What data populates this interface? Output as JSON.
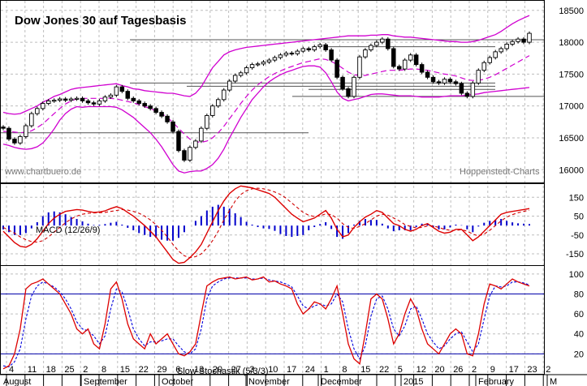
{
  "chart_data": [
    {
      "type": "candlestick",
      "title": "Dow Jones 30 auf Tagesbasis",
      "source_left": "www.chartbuero.de",
      "source_right": "Hoppenstedt-Charts",
      "ylim": [
        15800,
        18650
      ],
      "yticks": [
        16000,
        16500,
        17000,
        17500,
        18000,
        18500
      ],
      "series": [
        {
          "name": "Close",
          "values": [
            16650,
            16480,
            16420,
            16520,
            16690,
            16880,
            16960,
            17040,
            17080,
            17090,
            17110,
            17090,
            17110,
            17120,
            17080,
            17050,
            17030,
            17080,
            17140,
            17170,
            17300,
            17230,
            17120,
            17080,
            17040,
            17000,
            16960,
            16900,
            16840,
            16750,
            16600,
            16300,
            16150,
            16350,
            16450,
            16650,
            16850,
            17000,
            17100,
            17250,
            17390,
            17480,
            17520,
            17600,
            17650,
            17660,
            17690,
            17720,
            17760,
            17800,
            17830,
            17820,
            17860,
            17900,
            17880,
            17930,
            17960,
            17880,
            17720,
            17450,
            17270,
            17150,
            17450,
            17770,
            17880,
            17950,
            18000,
            18050,
            17900,
            17620,
            17580,
            17720,
            17800,
            17650,
            17530,
            17450,
            17380,
            17360,
            17420,
            17380,
            17350,
            17200,
            17150,
            17360,
            17560,
            17680,
            17760,
            17850,
            17900,
            17970,
            18010,
            18050,
            18000,
            18140
          ]
        },
        {
          "name": "Bollinger upper",
          "values": [
            16900,
            16880,
            16870,
            16880,
            16920,
            16960,
            17000,
            17060,
            17100,
            17150,
            17180,
            17220,
            17260,
            17280,
            17290,
            17300,
            17310,
            17320,
            17330,
            17340,
            17350,
            17320,
            17300,
            17270,
            17260,
            17240,
            17230,
            17220,
            17210,
            17200,
            17200,
            17180,
            17160,
            17150,
            17200,
            17300,
            17450,
            17600,
            17700,
            17800,
            17850,
            17880,
            17900,
            17920,
            17930,
            17940,
            17950,
            17960,
            17970,
            17980,
            17990,
            18000,
            18010,
            18020,
            18030,
            18040,
            18050,
            18060,
            18070,
            18080,
            18090,
            18100,
            18100,
            18100,
            18100,
            18110,
            18110,
            18120,
            18120,
            18100,
            18090,
            18080,
            18080,
            18070,
            18060,
            18050,
            18040,
            18030,
            18020,
            18010,
            18010,
            18000,
            18000,
            18010,
            18030,
            18060,
            18090,
            18120,
            18170,
            18230,
            18290,
            18340,
            18380,
            18420
          ]
        },
        {
          "name": "Bollinger lower",
          "values": [
            16400,
            16380,
            16350,
            16330,
            16320,
            16330,
            16360,
            16420,
            16520,
            16640,
            16780,
            16880,
            16950,
            16990,
            16980,
            16990,
            16990,
            16990,
            16990,
            16990,
            16980,
            16940,
            16880,
            16820,
            16740,
            16660,
            16580,
            16480,
            16360,
            16220,
            16080,
            15980,
            15950,
            15970,
            15980,
            15980,
            16020,
            16080,
            16180,
            16320,
            16500,
            16660,
            16820,
            16960,
            17100,
            17200,
            17300,
            17380,
            17440,
            17490,
            17530,
            17560,
            17590,
            17620,
            17630,
            17630,
            17610,
            17520,
            17380,
            17220,
            17120,
            17080,
            17100,
            17120,
            17150,
            17180,
            17190,
            17190,
            17180,
            17170,
            17160,
            17160,
            17160,
            17150,
            17140,
            17140,
            17140,
            17140,
            17150,
            17160,
            17160,
            17160,
            17170,
            17180,
            17190,
            17210,
            17220,
            17230,
            17240,
            17250,
            17260,
            17270,
            17280,
            17290
          ]
        },
        {
          "name": "Moving average",
          "values": [
            16600,
            16600,
            16590,
            16580,
            16590,
            16610,
            16660,
            16720,
            16800,
            16880,
            16960,
            17030,
            17080,
            17110,
            17120,
            17120,
            17120,
            17120,
            17120,
            17120,
            17110,
            17090,
            17070,
            17050,
            17020,
            16990,
            16960,
            16920,
            16880,
            16820,
            16740,
            16650,
            16560,
            16480,
            16440,
            16430,
            16450,
            16500,
            16580,
            16680,
            16800,
            16920,
            17040,
            17150,
            17250,
            17330,
            17400,
            17460,
            17510,
            17550,
            17590,
            17620,
            17650,
            17680,
            17700,
            17720,
            17740,
            17730,
            17700,
            17650,
            17590,
            17530,
            17490,
            17480,
            17480,
            17500,
            17520,
            17540,
            17560,
            17560,
            17560,
            17570,
            17580,
            17580,
            17570,
            17560,
            17540,
            17520,
            17500,
            17490,
            17470,
            17440,
            17410,
            17400,
            17400,
            17420,
            17450,
            17490,
            17540,
            17590,
            17640,
            17690,
            17740,
            17790
          ]
        }
      ],
      "resistance_lines": [
        18040,
        17930,
        17360,
        17310,
        17260,
        17150,
        16580
      ],
      "x_month_labels": [
        "August",
        "September",
        "October",
        "November",
        "December",
        "2015",
        "February",
        "M"
      ],
      "x_day_labels": [
        "4",
        "11",
        "18",
        "25",
        "2",
        "8",
        "15",
        "22",
        "29",
        "6",
        "13",
        "20",
        "27",
        "3",
        "10",
        "17",
        "24",
        "1",
        "8",
        "15",
        "22",
        "5",
        "12",
        "20",
        "26",
        "2",
        "9",
        "17",
        "23",
        "2"
      ]
    },
    {
      "type": "line",
      "title": "MACD (12/26/9)",
      "ylim": [
        -210,
        220
      ],
      "yticks": [
        150,
        50,
        -50,
        -150
      ],
      "series": [
        {
          "name": "MACD",
          "values": [
            -30,
            -60,
            -90,
            -110,
            -115,
            -100,
            -70,
            -30,
            10,
            40,
            60,
            75,
            80,
            85,
            82,
            75,
            70,
            72,
            78,
            90,
            100,
            90,
            70,
            50,
            25,
            0,
            -30,
            -60,
            -100,
            -140,
            -180,
            -200,
            -195,
            -170,
            -140,
            -100,
            -40,
            20,
            80,
            130,
            170,
            195,
            210,
            205,
            200,
            190,
            180,
            170,
            150,
            120,
            90,
            60,
            40,
            20,
            30,
            40,
            60,
            80,
            40,
            -20,
            -60,
            -50,
            -10,
            20,
            45,
            60,
            80,
            70,
            40,
            10,
            0,
            -20,
            -30,
            -20,
            0,
            10,
            -10,
            -30,
            -40,
            -35,
            -20,
            -20,
            -50,
            -80,
            -60,
            -30,
            0,
            30,
            60,
            70,
            75,
            80,
            85,
            90
          ]
        },
        {
          "name": "Signal",
          "values": [
            -10,
            -25,
            -40,
            -60,
            -75,
            -85,
            -88,
            -80,
            -60,
            -35,
            -10,
            15,
            35,
            50,
            60,
            65,
            67,
            68,
            70,
            75,
            80,
            85,
            82,
            75,
            65,
            50,
            30,
            5,
            -25,
            -60,
            -100,
            -135,
            -160,
            -170,
            -165,
            -150,
            -120,
            -80,
            -30,
            30,
            80,
            130,
            165,
            185,
            195,
            198,
            195,
            188,
            178,
            165,
            145,
            120,
            95,
            70,
            55,
            48,
            52,
            62,
            58,
            40,
            10,
            -10,
            -15,
            -5,
            10,
            30,
            50,
            60,
            55,
            40,
            25,
            5,
            -5,
            -12,
            -10,
            -2,
            -2,
            -10,
            -20,
            -25,
            -25,
            -22,
            -30,
            -45,
            -55,
            -45,
            -25,
            0,
            25,
            45,
            58,
            68,
            75,
            82
          ]
        },
        {
          "name": "Histogram",
          "values": [
            -20,
            -35,
            -50,
            -50,
            -40,
            -15,
            18,
            50,
            70,
            75,
            70,
            60,
            45,
            35,
            22,
            10,
            3,
            4,
            8,
            15,
            20,
            5,
            -12,
            -25,
            -40,
            -50,
            -60,
            -65,
            -75,
            -80,
            -80,
            -65,
            -35,
            0,
            25,
            50,
            80,
            100,
            110,
            100,
            90,
            65,
            45,
            20,
            5,
            -8,
            -15,
            -18,
            -28,
            -45,
            -55,
            -60,
            -55,
            -50,
            -25,
            -8,
            8,
            18,
            -18,
            -60,
            -70,
            -40,
            5,
            25,
            35,
            30,
            30,
            10,
            -15,
            -30,
            -25,
            -25,
            -25,
            -8,
            10,
            12,
            -8,
            -20,
            -20,
            -10,
            5,
            2,
            -20,
            -35,
            -5,
            15,
            25,
            30,
            35,
            25,
            17,
            12,
            10,
            8
          ]
        }
      ]
    },
    {
      "type": "line",
      "title": "Slow Stochastik (5/3/3)",
      "ylim": [
        0,
        108
      ],
      "yticks": [
        100,
        80,
        60,
        40,
        20
      ],
      "series": [
        {
          "name": "%K",
          "values": [
            5,
            8,
            20,
            45,
            85,
            90,
            92,
            95,
            90,
            85,
            80,
            70,
            60,
            45,
            40,
            45,
            30,
            25,
            50,
            85,
            92,
            75,
            50,
            35,
            30,
            25,
            40,
            30,
            35,
            40,
            30,
            20,
            18,
            22,
            30,
            60,
            88,
            92,
            95,
            96,
            97,
            95,
            96,
            97,
            94,
            95,
            97,
            92,
            93,
            90,
            88,
            85,
            70,
            60,
            65,
            72,
            70,
            65,
            75,
            88,
            60,
            30,
            15,
            10,
            40,
            75,
            80,
            75,
            55,
            30,
            40,
            60,
            75,
            65,
            45,
            30,
            25,
            20,
            30,
            40,
            45,
            40,
            20,
            18,
            40,
            70,
            90,
            88,
            85,
            90,
            95,
            92,
            90,
            88
          ]
        },
        {
          "name": "%D",
          "values": [
            8,
            7,
            12,
            25,
            55,
            78,
            88,
            92,
            90,
            87,
            82,
            75,
            65,
            52,
            45,
            43,
            38,
            30,
            38,
            65,
            85,
            82,
            65,
            45,
            35,
            28,
            32,
            32,
            33,
            35,
            35,
            28,
            22,
            20,
            25,
            45,
            75,
            88,
            92,
            95,
            96,
            96,
            96,
            96,
            95,
            95,
            96,
            94,
            93,
            92,
            90,
            87,
            78,
            68,
            65,
            68,
            70,
            68,
            70,
            80,
            72,
            45,
            25,
            15,
            28,
            58,
            75,
            78,
            65,
            45,
            38,
            48,
            65,
            68,
            55,
            40,
            32,
            25,
            28,
            35,
            40,
            42,
            32,
            22,
            30,
            55,
            78,
            88,
            87,
            88,
            92,
            92,
            91,
            89
          ]
        }
      ],
      "reference_lines": [
        80,
        20
      ]
    }
  ]
}
